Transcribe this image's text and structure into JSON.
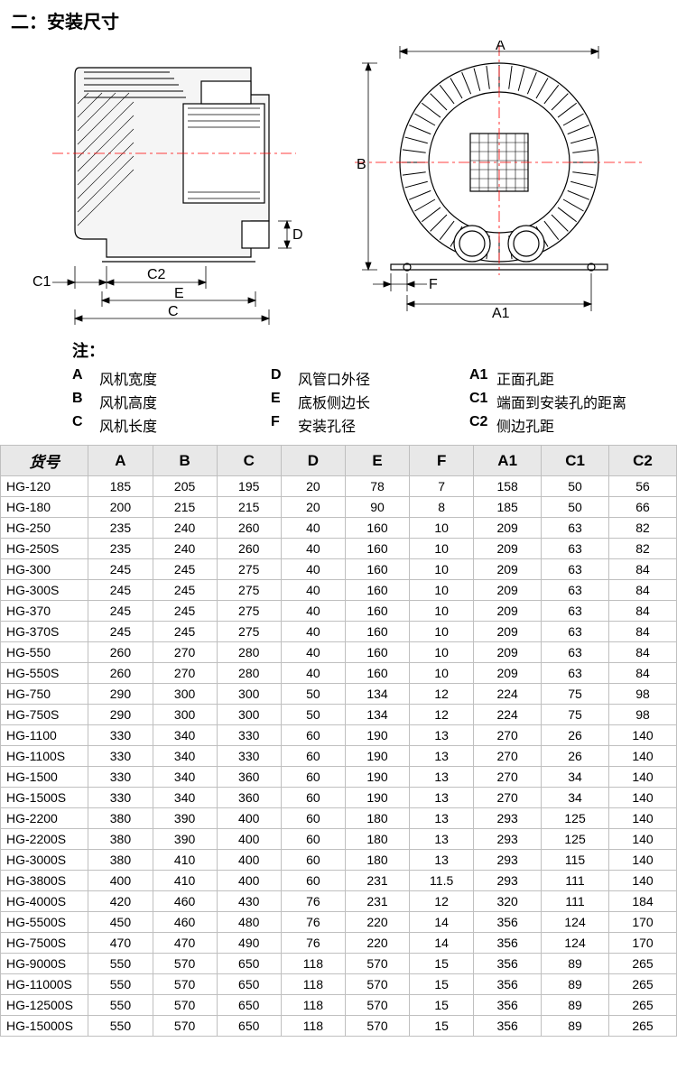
{
  "title": "二：安装尺寸",
  "diagram": {
    "left_labels": {
      "C1": "C1",
      "C2": "C2",
      "E": "E",
      "C": "C",
      "D": "D"
    },
    "right_labels": {
      "A": "A",
      "B": "B",
      "F": "F",
      "A1": "A1"
    }
  },
  "legend": {
    "header": "注：",
    "items": [
      {
        "key": "A",
        "text": "风机宽度"
      },
      {
        "key": "D",
        "text": "风管口外径"
      },
      {
        "key": "A1",
        "text": "正面孔距"
      },
      {
        "key": "B",
        "text": "风机高度"
      },
      {
        "key": "E",
        "text": "底板侧边长"
      },
      {
        "key": "C1",
        "text": "端面到安装孔的距离"
      },
      {
        "key": "C",
        "text": "风机长度"
      },
      {
        "key": "F",
        "text": "安装孔径"
      },
      {
        "key": "C2",
        "text": "侧边孔距"
      }
    ]
  },
  "table": {
    "columns": [
      "货号",
      "A",
      "B",
      "C",
      "D",
      "E",
      "F",
      "A1",
      "C1",
      "C2"
    ],
    "column_widths": [
      "13%",
      "9.5%",
      "9.5%",
      "9.5%",
      "9.5%",
      "9.5%",
      "9.5%",
      "10%",
      "10%",
      "10%"
    ],
    "rows": [
      [
        "HG-120",
        "185",
        "205",
        "195",
        "20",
        "78",
        "7",
        "158",
        "50",
        "56"
      ],
      [
        "HG-180",
        "200",
        "215",
        "215",
        "20",
        "90",
        "8",
        "185",
        "50",
        "66"
      ],
      [
        "HG-250",
        "235",
        "240",
        "260",
        "40",
        "160",
        "10",
        "209",
        "63",
        "82"
      ],
      [
        "HG-250S",
        "235",
        "240",
        "260",
        "40",
        "160",
        "10",
        "209",
        "63",
        "82"
      ],
      [
        "HG-300",
        "245",
        "245",
        "275",
        "40",
        "160",
        "10",
        "209",
        "63",
        "84"
      ],
      [
        "HG-300S",
        "245",
        "245",
        "275",
        "40",
        "160",
        "10",
        "209",
        "63",
        "84"
      ],
      [
        "HG-370",
        "245",
        "245",
        "275",
        "40",
        "160",
        "10",
        "209",
        "63",
        "84"
      ],
      [
        "HG-370S",
        "245",
        "245",
        "275",
        "40",
        "160",
        "10",
        "209",
        "63",
        "84"
      ],
      [
        "HG-550",
        "260",
        "270",
        "280",
        "40",
        "160",
        "10",
        "209",
        "63",
        "84"
      ],
      [
        "HG-550S",
        "260",
        "270",
        "280",
        "40",
        "160",
        "10",
        "209",
        "63",
        "84"
      ],
      [
        "HG-750",
        "290",
        "300",
        "300",
        "50",
        "134",
        "12",
        "224",
        "75",
        "98"
      ],
      [
        "HG-750S",
        "290",
        "300",
        "300",
        "50",
        "134",
        "12",
        "224",
        "75",
        "98"
      ],
      [
        "HG-1100",
        "330",
        "340",
        "330",
        "60",
        "190",
        "13",
        "270",
        "26",
        "140"
      ],
      [
        "HG-1100S",
        "330",
        "340",
        "330",
        "60",
        "190",
        "13",
        "270",
        "26",
        "140"
      ],
      [
        "HG-1500",
        "330",
        "340",
        "360",
        "60",
        "190",
        "13",
        "270",
        "34",
        "140"
      ],
      [
        "HG-1500S",
        "330",
        "340",
        "360",
        "60",
        "190",
        "13",
        "270",
        "34",
        "140"
      ],
      [
        "HG-2200",
        "380",
        "390",
        "400",
        "60",
        "180",
        "13",
        "293",
        "125",
        "140"
      ],
      [
        "HG-2200S",
        "380",
        "390",
        "400",
        "60",
        "180",
        "13",
        "293",
        "125",
        "140"
      ],
      [
        "HG-3000S",
        "380",
        "410",
        "400",
        "60",
        "180",
        "13",
        "293",
        "115",
        "140"
      ],
      [
        "HG-3800S",
        "400",
        "410",
        "400",
        "60",
        "231",
        "11.5",
        "293",
        "111",
        "140"
      ],
      [
        "HG-4000S",
        "420",
        "460",
        "430",
        "76",
        "231",
        "12",
        "320",
        "111",
        "184"
      ],
      [
        "HG-5500S",
        "450",
        "460",
        "480",
        "76",
        "220",
        "14",
        "356",
        "124",
        "170"
      ],
      [
        "HG-7500S",
        "470",
        "470",
        "490",
        "76",
        "220",
        "14",
        "356",
        "124",
        "170"
      ],
      [
        "HG-9000S",
        "550",
        "570",
        "650",
        "118",
        "570",
        "15",
        "356",
        "89",
        "265"
      ],
      [
        "HG-11000S",
        "550",
        "570",
        "650",
        "118",
        "570",
        "15",
        "356",
        "89",
        "265"
      ],
      [
        "HG-12500S",
        "550",
        "570",
        "650",
        "118",
        "570",
        "15",
        "356",
        "89",
        "265"
      ],
      [
        "HG-15000S",
        "550",
        "570",
        "650",
        "118",
        "570",
        "15",
        "356",
        "89",
        "265"
      ]
    ]
  },
  "styles": {
    "header_bg": "#e8e8e8",
    "border_color": "#bfbfbf",
    "centerline_color": "#ff0000"
  }
}
